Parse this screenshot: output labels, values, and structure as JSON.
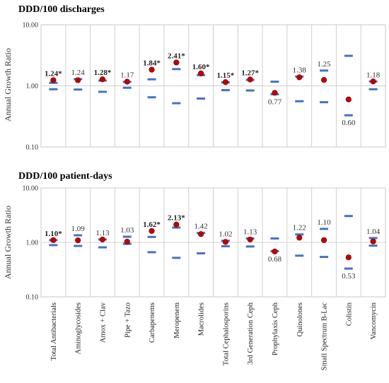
{
  "chart_data": {
    "type": "scatter",
    "categories": [
      "Total Antibacterials",
      "Aminoglycosides",
      "Amox + Clav",
      "Pipe + Tazo",
      "Carbapenems",
      "Meropenem",
      "Macrolides",
      "Total Cephalosporins",
      "3rd Generation Ceph",
      "Prophylaxis Ceph",
      "Quinolones",
      "Small Spectrum B-Lac",
      "Colistin",
      "Vancomycin"
    ],
    "ylabel": "Annual Growth Ratio",
    "yscale": "log",
    "ylim": [
      0.1,
      10
    ],
    "yticks": [
      "0.10",
      "1.00",
      "10.00"
    ],
    "grid": "horizontal",
    "panels": [
      {
        "title": "DDD/100 discharges",
        "labels": [
          "1.24*",
          "1.24",
          "1.28*",
          "1.17",
          "1.84*",
          "2.41*",
          "1.60*",
          "1.15*",
          "1.27*",
          "0.77",
          "1.38",
          "1.25",
          "0.60",
          "1.18"
        ],
        "values": [
          1.24,
          1.24,
          1.28,
          1.17,
          1.84,
          2.41,
          1.6,
          1.15,
          1.27,
          0.77,
          1.38,
          1.25,
          0.6,
          1.18
        ],
        "upper": [
          1.12,
          1.29,
          1.22,
          1.16,
          1.28,
          1.88,
          1.5,
          1.14,
          1.25,
          1.17,
          1.42,
          1.78,
          3.1,
          1.18
        ],
        "lower": [
          0.88,
          0.87,
          0.8,
          0.93,
          0.65,
          0.52,
          0.62,
          0.85,
          0.84,
          0.73,
          0.56,
          0.54,
          0.33,
          0.88
        ],
        "significant": [
          true,
          false,
          true,
          false,
          true,
          true,
          true,
          true,
          true,
          false,
          false,
          false,
          false,
          false
        ]
      },
      {
        "title": "DDD/100 patient-days",
        "labels": [
          "1.10*",
          "1.09",
          "1.13",
          "1.03",
          "1.62*",
          "2.13*",
          "1.42",
          "1.02",
          "1.13",
          "0.68",
          "1.22",
          "1.10",
          "0.53",
          "1.04"
        ],
        "values": [
          1.1,
          1.09,
          1.13,
          1.03,
          1.62,
          2.13,
          1.42,
          1.02,
          1.13,
          0.68,
          1.22,
          1.1,
          0.53,
          1.04
        ],
        "upper": [
          1.1,
          1.35,
          1.13,
          1.27,
          1.26,
          1.87,
          1.49,
          1.07,
          1.18,
          1.18,
          1.4,
          1.77,
          3.05,
          1.2
        ],
        "lower": [
          0.89,
          0.86,
          0.81,
          0.94,
          0.66,
          0.52,
          0.63,
          0.85,
          0.84,
          0.69,
          0.57,
          0.54,
          0.33,
          0.87
        ],
        "significant": [
          true,
          false,
          false,
          false,
          true,
          true,
          false,
          false,
          false,
          false,
          false,
          false,
          false,
          false
        ]
      }
    ]
  }
}
